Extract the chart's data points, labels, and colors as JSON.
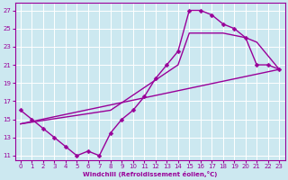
{
  "xlabel": "Windchill (Refroidissement éolien,°C)",
  "bg_color": "#cce8f0",
  "line_color": "#990099",
  "grid_color": "#ffffff",
  "xlim": [
    -0.5,
    23.5
  ],
  "ylim": [
    10.5,
    27.8
  ],
  "xticks": [
    0,
    1,
    2,
    3,
    4,
    5,
    6,
    7,
    8,
    9,
    10,
    11,
    12,
    13,
    14,
    15,
    16,
    17,
    18,
    19,
    20,
    21,
    22,
    23
  ],
  "yticks": [
    11,
    13,
    15,
    17,
    19,
    21,
    23,
    25,
    27
  ],
  "curve1_x": [
    0,
    1,
    2,
    3,
    4,
    5,
    6,
    7,
    8,
    9,
    10,
    11,
    12,
    13,
    14,
    15,
    16,
    17,
    18,
    19,
    20,
    21,
    22,
    23
  ],
  "curve1_y": [
    16,
    15,
    14,
    13,
    12,
    11,
    11.5,
    11,
    13.5,
    15,
    16,
    17.5,
    19.5,
    21,
    22.5,
    27,
    27,
    26.5,
    25.5,
    25,
    24,
    21,
    21,
    20.5
  ],
  "curve2_x": [
    0,
    23
  ],
  "curve2_y": [
    14.5,
    20.5
  ],
  "curve3_x": [
    0,
    8,
    14,
    15,
    18,
    20,
    21,
    23
  ],
  "curve3_y": [
    14.5,
    16,
    21,
    24.5,
    24.5,
    24,
    23.5,
    20.5
  ],
  "marker": "D",
  "marker_size": 2.5,
  "line_width": 1.0
}
